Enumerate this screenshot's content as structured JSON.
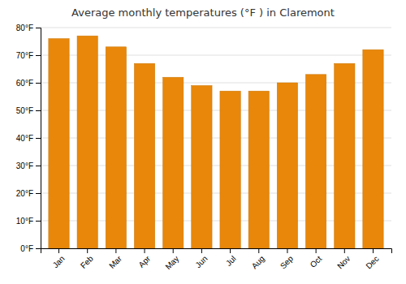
{
  "chart_data": {
    "type": "bar",
    "title": "Average monthly temperatures (°F ) in Claremont",
    "categories": [
      "Jan",
      "Feb",
      "Mar",
      "Apr",
      "May",
      "Jun",
      "Jul",
      "Aug",
      "Sep",
      "Oct",
      "Nov",
      "Dec"
    ],
    "values": [
      76,
      77,
      73,
      67,
      62,
      59,
      57,
      57,
      60,
      63,
      67,
      72
    ],
    "color": "#E8870A",
    "ylim": [
      0,
      80
    ],
    "yticks": [
      {
        "value": 0,
        "label": "0°F"
      },
      {
        "value": 10,
        "label": "10°F"
      },
      {
        "value": 20,
        "label": "20°F"
      },
      {
        "value": 30,
        "label": "30°F"
      },
      {
        "value": 40,
        "label": "40°F"
      },
      {
        "value": 50,
        "label": "50°F"
      },
      {
        "value": 60,
        "label": "60°F"
      },
      {
        "value": 70,
        "label": "70°F"
      },
      {
        "value": 80,
        "label": "80°F"
      }
    ],
    "grid": true
  }
}
